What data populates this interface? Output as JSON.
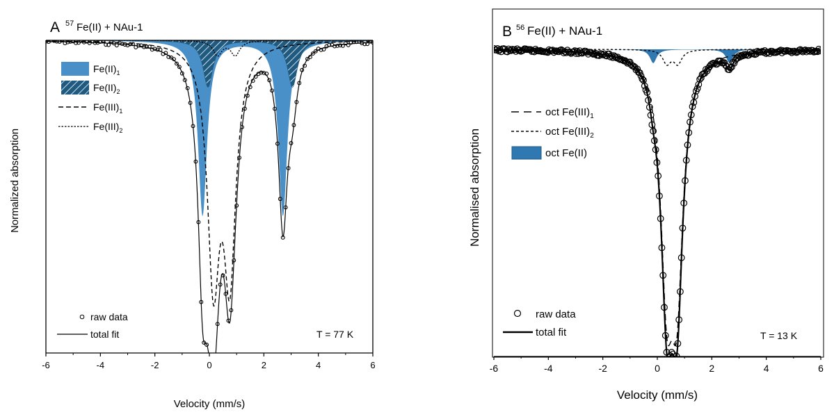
{
  "chart_data": [
    {
      "type": "line",
      "panel_letter": "A",
      "title_sup": "57",
      "title_main": "Fe(II) + NAu-1",
      "xlabel": "Velocity (mm/s)",
      "ylabel": "Normalized absorption",
      "xlim": [
        -6,
        6
      ],
      "ylim": [
        0.0,
        1.02
      ],
      "xticks": [
        "-6",
        "-4",
        "-2",
        "0",
        "2",
        "4",
        "6"
      ],
      "temperature_label": "T = 77 K",
      "legend_top": [
        {
          "label": "Fe(II)",
          "sub": "1",
          "style": "fill-solid"
        },
        {
          "label": "Fe(II)",
          "sub": "2",
          "style": "fill-hatch"
        },
        {
          "label": "Fe(III)",
          "sub": "1",
          "style": "dash"
        },
        {
          "label": "Fe(III)",
          "sub": "2",
          "style": "dot"
        }
      ],
      "legend_bottom": [
        {
          "label": "raw data",
          "style": "marker-circle"
        },
        {
          "label": "total fit",
          "style": "solid"
        }
      ],
      "components": [
        {
          "name": "Fe(II)1",
          "style": "fill-solid",
          "lines": [
            {
              "center": -0.25,
              "depth": 0.6,
              "hwhm": 0.2
            },
            {
              "center": 2.7,
              "depth": 0.6,
              "hwhm": 0.2
            }
          ]
        },
        {
          "name": "Fe(II)2",
          "style": "fill-hatch",
          "lines": [
            {
              "center": -0.05,
              "depth": 0.16,
              "hwhm": 0.22
            },
            {
              "center": 3.05,
              "depth": 0.16,
              "hwhm": 0.22
            }
          ]
        },
        {
          "name": "Fe(III)1",
          "style": "dash",
          "lines": [
            {
              "center": 0.15,
              "depth": 0.78,
              "hwhm": 0.27
            },
            {
              "center": 0.75,
              "depth": 0.76,
              "hwhm": 0.27
            }
          ]
        },
        {
          "name": "Fe(III)2",
          "style": "dot",
          "lines": [
            {
              "center": 0.3,
              "depth": 0.05,
              "hwhm": 0.2
            },
            {
              "center": 0.95,
              "depth": 0.05,
              "hwhm": 0.2
            }
          ]
        }
      ],
      "raw_data_noise": 0.006
    },
    {
      "type": "line",
      "panel_letter": "B",
      "title_sup": "56",
      "title_main": "Fe(II) + NAu-1",
      "xlabel": "Velocity (mm/s)",
      "ylabel": "Normalised absorption",
      "xlim": [
        -6,
        6
      ],
      "ylim": [
        0.0,
        1.02
      ],
      "xticks": [
        "-6",
        "-4",
        "-2",
        "0",
        "2",
        "4",
        "6"
      ],
      "temperature_label": "T = 13 K",
      "legend_top": [
        {
          "label": "oct Fe(III)",
          "sub": "1",
          "style": "dash"
        },
        {
          "label": "oct Fe(III)",
          "sub": "2",
          "style": "dot"
        },
        {
          "label": "oct Fe(II)",
          "sub": "",
          "style": "fill-solid"
        }
      ],
      "legend_bottom": [
        {
          "label": "raw data",
          "style": "marker-circle"
        },
        {
          "label": "total fit",
          "style": "solid"
        }
      ],
      "components": [
        {
          "name": "oct Fe(III)1",
          "style": "dash",
          "lines": [
            {
              "center": 0.35,
              "depth": 0.78,
              "hwhm": 0.27
            },
            {
              "center": 0.72,
              "depth": 0.78,
              "hwhm": 0.27
            }
          ]
        },
        {
          "name": "oct Fe(III)2",
          "style": "dot",
          "lines": [
            {
              "center": 0.35,
              "depth": 0.05,
              "hwhm": 0.18
            },
            {
              "center": 0.75,
              "depth": 0.05,
              "hwhm": 0.18
            }
          ]
        },
        {
          "name": "oct Fe(II)",
          "style": "fill-solid",
          "lines": [
            {
              "center": -0.15,
              "depth": 0.05,
              "hwhm": 0.15
            },
            {
              "center": 2.65,
              "depth": 0.05,
              "hwhm": 0.15
            }
          ]
        }
      ],
      "raw_data_noise": 0.006
    }
  ],
  "colors": {
    "fill": "#4a90c8",
    "fill_dark": "#2f78b2",
    "hatch_bg": "#1f5a80",
    "line": "#000000",
    "axis": "#000000"
  }
}
